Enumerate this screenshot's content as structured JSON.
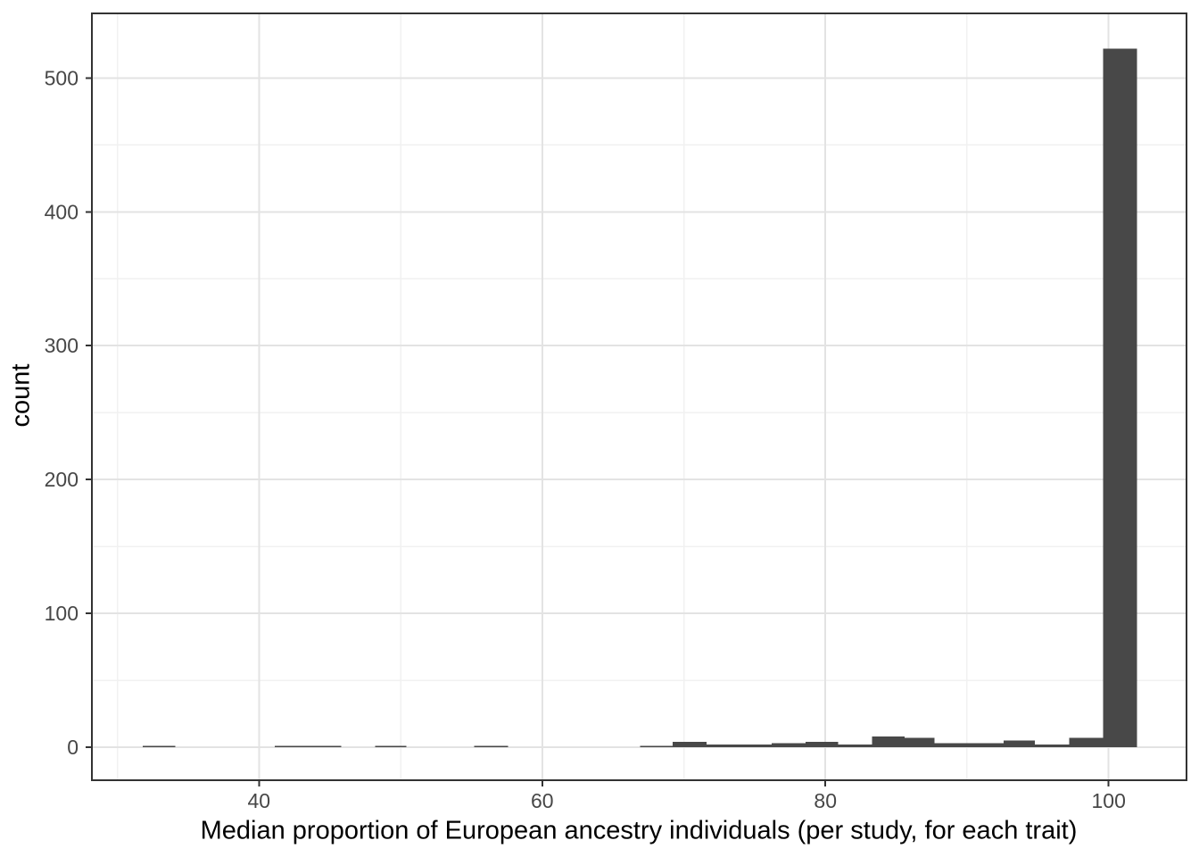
{
  "chart_data": {
    "type": "bar",
    "subtype": "histogram",
    "title": "",
    "xlabel": "Median proportion of European ancestry individuals (per study, for each trait)",
    "ylabel": "count",
    "xlim": [
      28.2,
      105.5
    ],
    "ylim": [
      -24.7,
      548.3
    ],
    "x_ticks": [
      40,
      60,
      80,
      100
    ],
    "x_minor_ticks": [
      30,
      50,
      70,
      90
    ],
    "y_ticks": [
      0,
      100,
      200,
      300,
      400,
      500
    ],
    "y_minor_ticks": [
      50,
      150,
      250,
      350,
      450
    ],
    "grid": "major-and-minor",
    "legend_position": "none",
    "bins": [
      {
        "x0": 31.8,
        "x1": 34.1,
        "count": 1
      },
      {
        "x0": 41.1,
        "x1": 43.5,
        "count": 1
      },
      {
        "x0": 43.5,
        "x1": 45.8,
        "count": 1
      },
      {
        "x0": 48.2,
        "x1": 50.4,
        "count": 1
      },
      {
        "x0": 55.2,
        "x1": 57.6,
        "count": 1
      },
      {
        "x0": 66.9,
        "x1": 69.2,
        "count": 1
      },
      {
        "x0": 69.2,
        "x1": 71.6,
        "count": 4
      },
      {
        "x0": 71.6,
        "x1": 73.9,
        "count": 2
      },
      {
        "x0": 73.9,
        "x1": 76.2,
        "count": 2
      },
      {
        "x0": 76.2,
        "x1": 78.6,
        "count": 3
      },
      {
        "x0": 78.6,
        "x1": 80.9,
        "count": 4
      },
      {
        "x0": 80.9,
        "x1": 83.3,
        "count": 2
      },
      {
        "x0": 83.3,
        "x1": 85.6,
        "count": 8
      },
      {
        "x0": 85.6,
        "x1": 87.7,
        "count": 7
      },
      {
        "x0": 87.7,
        "x1": 90.1,
        "count": 3
      },
      {
        "x0": 90.1,
        "x1": 92.6,
        "count": 3
      },
      {
        "x0": 92.6,
        "x1": 94.8,
        "count": 5
      },
      {
        "x0": 94.8,
        "x1": 97.2,
        "count": 2
      },
      {
        "x0": 97.2,
        "x1": 99.6,
        "count": 7
      },
      {
        "x0": 99.6,
        "x1": 102.0,
        "count": 522
      }
    ],
    "colors": {
      "bar_fill": "#484848",
      "panel_border": "#333333",
      "grid_major": "#e3e3e3",
      "grid_minor": "#f1f1f1",
      "tick_mark": "#333333",
      "tick_label": "#474747",
      "axis_title": "#000000",
      "background": "#ffffff"
    }
  }
}
